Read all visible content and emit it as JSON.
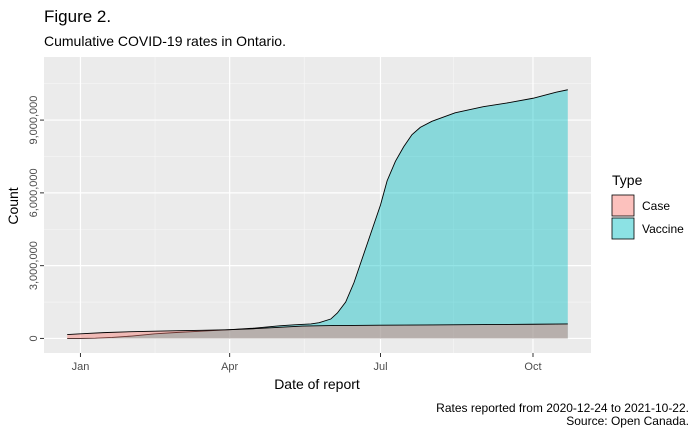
{
  "figure": {
    "title": "Figure 2.",
    "subtitle": "Cumulative COVID-19 rates in Ontario.",
    "caption_line1": "Rates reported from 2020-12-24 to 2021-10-22.",
    "caption_line2": "Source: Open Canada."
  },
  "chart_data": {
    "type": "area",
    "x_type": "date",
    "xlabel": "Date of report",
    "ylabel": "Count",
    "x_ticks": [
      {
        "date": "2021-01-01",
        "label": "Jan"
      },
      {
        "date": "2021-04-01",
        "label": "Apr"
      },
      {
        "date": "2021-07-01",
        "label": "Jul"
      },
      {
        "date": "2021-10-01",
        "label": "Oct"
      }
    ],
    "y_ticks": [
      0,
      3000000,
      6000000,
      9000000
    ],
    "y_tick_labels": [
      "0",
      "3,000,000",
      "6,000,000",
      "9,000,000"
    ],
    "xlim": [
      "2020-12-10",
      "2021-11-05"
    ],
    "ylim": [
      -600000,
      11600000
    ],
    "grid": true,
    "legend": {
      "title": "Type",
      "placement": "right"
    },
    "series": [
      {
        "name": "Case",
        "color": "#F8766D",
        "x": [
          "2020-12-24",
          "2021-01-01",
          "2021-01-15",
          "2021-02-01",
          "2021-02-15",
          "2021-03-01",
          "2021-03-15",
          "2021-04-01",
          "2021-04-15",
          "2021-05-01",
          "2021-05-15",
          "2021-06-01",
          "2021-06-15",
          "2021-07-01",
          "2021-08-01",
          "2021-09-01",
          "2021-10-01",
          "2021-10-22"
        ],
        "y": [
          160000,
          190000,
          240000,
          280000,
          300000,
          320000,
          335000,
          360000,
          400000,
          460000,
          510000,
          530000,
          535000,
          545000,
          555000,
          570000,
          585000,
          600000
        ]
      },
      {
        "name": "Vaccine",
        "color": "#00BFC4",
        "x": [
          "2020-12-24",
          "2021-01-01",
          "2021-01-10",
          "2021-01-20",
          "2021-02-01",
          "2021-02-15",
          "2021-03-01",
          "2021-03-15",
          "2021-04-01",
          "2021-04-15",
          "2021-05-01",
          "2021-05-10",
          "2021-05-20",
          "2021-05-25",
          "2021-06-01",
          "2021-06-05",
          "2021-06-10",
          "2021-06-15",
          "2021-06-20",
          "2021-06-25",
          "2021-07-01",
          "2021-07-05",
          "2021-07-10",
          "2021-07-15",
          "2021-07-20",
          "2021-07-25",
          "2021-08-01",
          "2021-08-15",
          "2021-09-01",
          "2021-09-15",
          "2021-10-01",
          "2021-10-15",
          "2021-10-22"
        ],
        "y": [
          0,
          1000,
          10000,
          40000,
          100000,
          190000,
          250000,
          300000,
          360000,
          420000,
          520000,
          560000,
          600000,
          650000,
          800000,
          1050000,
          1500000,
          2300000,
          3300000,
          4300000,
          5500000,
          6500000,
          7300000,
          7900000,
          8400000,
          8700000,
          8950000,
          9300000,
          9550000,
          9700000,
          9900000,
          10150000,
          10250000
        ]
      }
    ]
  }
}
